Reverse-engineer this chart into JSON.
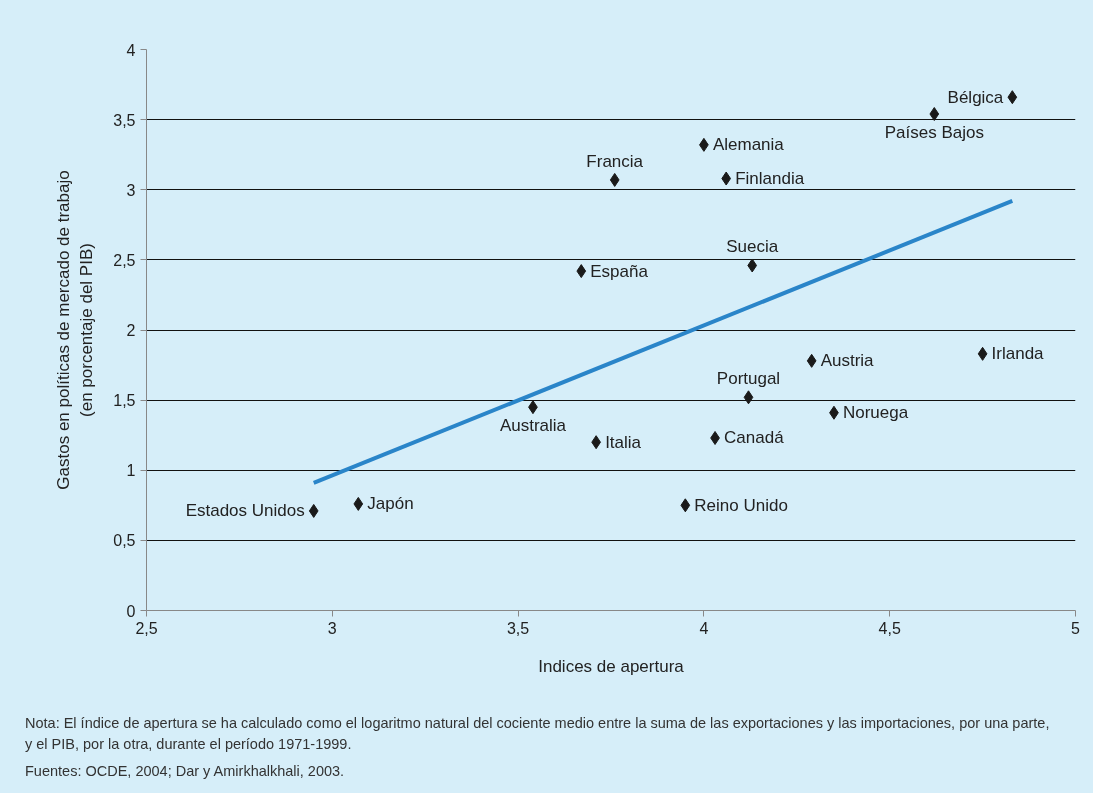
{
  "chart_data": {
    "type": "scatter",
    "xlabel": "Indices de apertura",
    "ylabel": "Gastos en políticas de mercado de trabajo\n(en porcentaje del PIB)",
    "series": [
      {
        "color": "#1a1a1a",
        "x": [
          4.83,
          4.62,
          4.0,
          3.76,
          4.06,
          4.13,
          3.67,
          4.29,
          4.75,
          4.12,
          3.54,
          4.35,
          3.71,
          4.03,
          2.95,
          3.07,
          3.95
        ],
        "values": [
          3.66,
          3.54,
          3.32,
          3.07,
          3.08,
          2.46,
          2.42,
          1.78,
          1.83,
          1.52,
          1.45,
          1.41,
          1.2,
          1.23,
          0.71,
          0.76,
          0.75
        ],
        "value_labels": [
          "Bélgica",
          "Países Bajos",
          "Alemania",
          "Francia",
          "Finlandia",
          "Suecia",
          "España",
          "Austria",
          "Irlanda",
          "Portugal",
          "Australia",
          "Noruega",
          "Italia",
          "Canadá",
          "Estados Unidos",
          "Japón",
          "Reino Unido"
        ]
      },
      {
        "type": "line",
        "marker": "none",
        "color": "#2a85c9",
        "x": [
          2.95,
          4.83
        ],
        "values": [
          0.91,
          2.92
        ]
      }
    ],
    "xlim": [
      2.5,
      5
    ],
    "xticks": [
      {
        "value": 2.5,
        "label": "2,5"
      },
      3,
      {
        "value": 3.5,
        "label": "3,5"
      },
      4,
      {
        "value": 4.5,
        "label": "4,5"
      },
      5
    ],
    "ylim": [
      0,
      4
    ],
    "yticks": [
      0,
      {
        "value": 0.5,
        "label": "0,5"
      },
      1,
      {
        "value": 1.5,
        "label": "1,5"
      },
      2,
      {
        "value": 2.5,
        "label": "2,5"
      },
      3,
      {
        "value": 3.5,
        "label": "3,5"
      },
      4
    ],
    "grid": "y",
    "marker": "diamond",
    "annotations": [
      "Nota: El índice de apertura se ha calculado como el logaritmo natural del cociente medio entre la suma de las exportaciones y las importaciones, por una parte, y el PIB, por la otra, durante el período 1971-1999.",
      "Fuentes: OCDE, 2004; Dar y Amirkhalkhali, 2003."
    ]
  }
}
